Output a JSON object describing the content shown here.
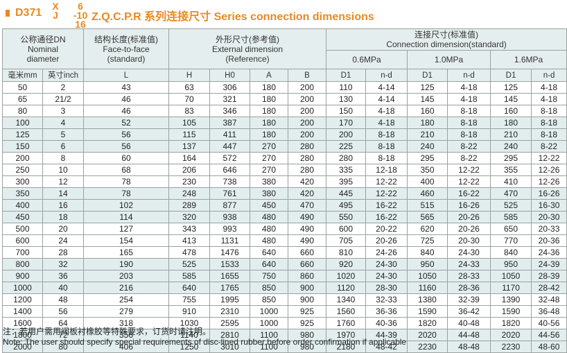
{
  "title": {
    "model": "D371",
    "stack1_top": "X",
    "stack1_bottom": "J",
    "stack2_top": "6",
    "stack2_mid": "-10",
    "stack2_bottom": "16",
    "suffix": "Z.Q.C.P.R 系列连接尺寸 Series connection dimensions"
  },
  "header": {
    "dn": {
      "cn": "公称通径DN",
      "en1": "Nominal",
      "en2": "diameter"
    },
    "face": {
      "cn": "结构长度(标准值)",
      "en1": "Face-to-face",
      "en2": "(standard)"
    },
    "ext": {
      "cn": "外形尺寸(参考值)",
      "en1": "External dimension",
      "en2": "(Reference)"
    },
    "conn": {
      "cn": "连接尺寸(标准值)",
      "en1": "Connection dimension(standard)"
    },
    "pressures": [
      "0.6MPa",
      "1.0MPa",
      "1.6MPa"
    ],
    "cols": [
      "毫米mm",
      "英寸inch",
      "L",
      "H",
      "H0",
      "A",
      "B",
      "D1",
      "n-d",
      "D1",
      "n-d",
      "D1",
      "n-d"
    ]
  },
  "rows": [
    [
      "50",
      "2",
      "43",
      "63",
      "306",
      "180",
      "200",
      "110",
      "4-14",
      "125",
      "4-18",
      "125",
      "4-18"
    ],
    [
      "65",
      "21/2",
      "46",
      "70",
      "321",
      "180",
      "200",
      "130",
      "4-14",
      "145",
      "4-18",
      "145",
      "4-18"
    ],
    [
      "80",
      "3",
      "46",
      "83",
      "346",
      "180",
      "200",
      "150",
      "4-18",
      "160",
      "8-18",
      "160",
      "8-18"
    ],
    [
      "100",
      "4",
      "52",
      "105",
      "387",
      "180",
      "200",
      "170",
      "4-18",
      "180",
      "8-18",
      "180",
      "8-18"
    ],
    [
      "125",
      "5",
      "56",
      "115",
      "411",
      "180",
      "200",
      "200",
      "8-18",
      "210",
      "8-18",
      "210",
      "8-18"
    ],
    [
      "150",
      "6",
      "56",
      "137",
      "447",
      "270",
      "280",
      "225",
      "8-18",
      "240",
      "8-22",
      "240",
      "8-22"
    ],
    [
      "200",
      "8",
      "60",
      "164",
      "572",
      "270",
      "280",
      "280",
      "8-18",
      "295",
      "8-22",
      "295",
      "12-22"
    ],
    [
      "250",
      "10",
      "68",
      "206",
      "646",
      "270",
      "280",
      "335",
      "12-18",
      "350",
      "12-22",
      "355",
      "12-26"
    ],
    [
      "300",
      "12",
      "78",
      "230",
      "738",
      "380",
      "420",
      "395",
      "12-22",
      "400",
      "12-22",
      "410",
      "12-26"
    ],
    [
      "350",
      "14",
      "78",
      "248",
      "761",
      "380",
      "420",
      "445",
      "12-22",
      "460",
      "16-22",
      "470",
      "16-26"
    ],
    [
      "400",
      "16",
      "102",
      "289",
      "877",
      "450",
      "470",
      "495",
      "16-22",
      "515",
      "16-26",
      "525",
      "16-30"
    ],
    [
      "450",
      "18",
      "114",
      "320",
      "938",
      "480",
      "490",
      "550",
      "16-22",
      "565",
      "20-26",
      "585",
      "20-30"
    ],
    [
      "500",
      "20",
      "127",
      "343",
      "993",
      "480",
      "490",
      "600",
      "20-22",
      "620",
      "20-26",
      "650",
      "20-33"
    ],
    [
      "600",
      "24",
      "154",
      "413",
      "1131",
      "480",
      "490",
      "705",
      "20-26",
      "725",
      "20-30",
      "770",
      "20-36"
    ],
    [
      "700",
      "28",
      "165",
      "478",
      "1476",
      "640",
      "660",
      "810",
      "24-26",
      "840",
      "24-30",
      "840",
      "24-36"
    ],
    [
      "800",
      "32",
      "190",
      "525",
      "1533",
      "640",
      "660",
      "920",
      "24-30",
      "950",
      "24-33",
      "950",
      "24-39"
    ],
    [
      "900",
      "36",
      "203",
      "585",
      "1655",
      "750",
      "860",
      "1020",
      "24-30",
      "1050",
      "28-33",
      "1050",
      "28-39"
    ],
    [
      "1000",
      "40",
      "216",
      "640",
      "1765",
      "850",
      "900",
      "1120",
      "28-30",
      "1160",
      "28-36",
      "1170",
      "28-42"
    ],
    [
      "1200",
      "48",
      "254",
      "755",
      "1995",
      "850",
      "900",
      "1340",
      "32-33",
      "1380",
      "32-39",
      "1390",
      "32-48"
    ],
    [
      "1400",
      "56",
      "279",
      "910",
      "2310",
      "1000",
      "925",
      "1560",
      "36-36",
      "1590",
      "36-42",
      "1590",
      "36-48"
    ],
    [
      "1600",
      "64",
      "318",
      "1030",
      "2595",
      "1000",
      "925",
      "1760",
      "40-36",
      "1820",
      "40-48",
      "1820",
      "40-56"
    ],
    [
      "1800",
      "72",
      "356",
      "1140",
      "2810",
      "1100",
      "980",
      "1970",
      "44-39",
      "2020",
      "44-48",
      "2020",
      "44-56"
    ],
    [
      "2000",
      "80",
      "406",
      "1250",
      "3010",
      "1100",
      "980",
      "2180",
      "48-42",
      "2230",
      "48-48",
      "2230",
      "48-60"
    ]
  ],
  "notes": {
    "cn": "注：若用户需用阀板衬橡胶等特殊要求，订货时请注明。",
    "en": "Note: The user should specify special requirements of disc-lined rubber before order confirmation if applicable"
  }
}
